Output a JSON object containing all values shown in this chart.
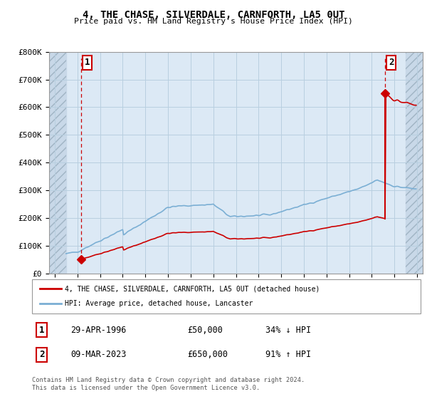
{
  "title": "4, THE CHASE, SILVERDALE, CARNFORTH, LA5 0UT",
  "subtitle": "Price paid vs. HM Land Registry's House Price Index (HPI)",
  "hpi_label": "HPI: Average price, detached house, Lancaster",
  "price_label": "4, THE CHASE, SILVERDALE, CARNFORTH, LA5 0UT (detached house)",
  "sale1_date": "29-APR-1996",
  "sale1_price": 50000,
  "sale1_pct": "34% ↓ HPI",
  "sale2_date": "09-MAR-2023",
  "sale2_price": 650000,
  "sale2_pct": "91% ↑ HPI",
  "hpi_color": "#7bafd4",
  "price_color": "#cc0000",
  "background_color": "#dce9f5",
  "hatch_color": "#c0c8d0",
  "grid_color": "#b8cfe0",
  "ylim": [
    0,
    800000
  ],
  "xlim_start": 1993.5,
  "xlim_end": 2026.5,
  "sale1_x": 1996.33,
  "sale1_y": 50000,
  "sale2_x": 2023.17,
  "sale2_y": 650000,
  "footer": "Contains HM Land Registry data © Crown copyright and database right 2024.\nThis data is licensed under the Open Government Licence v3.0.",
  "yticks": [
    0,
    100000,
    200000,
    300000,
    400000,
    500000,
    600000,
    700000,
    800000
  ],
  "ylabels": [
    "£0",
    "£100K",
    "£200K",
    "£300K",
    "£400K",
    "£500K",
    "£600K",
    "£700K",
    "£800K"
  ],
  "xtick_years": [
    1994,
    1996,
    1998,
    2000,
    2002,
    2004,
    2006,
    2008,
    2010,
    2012,
    2014,
    2016,
    2018,
    2020,
    2022,
    2024,
    2026
  ]
}
